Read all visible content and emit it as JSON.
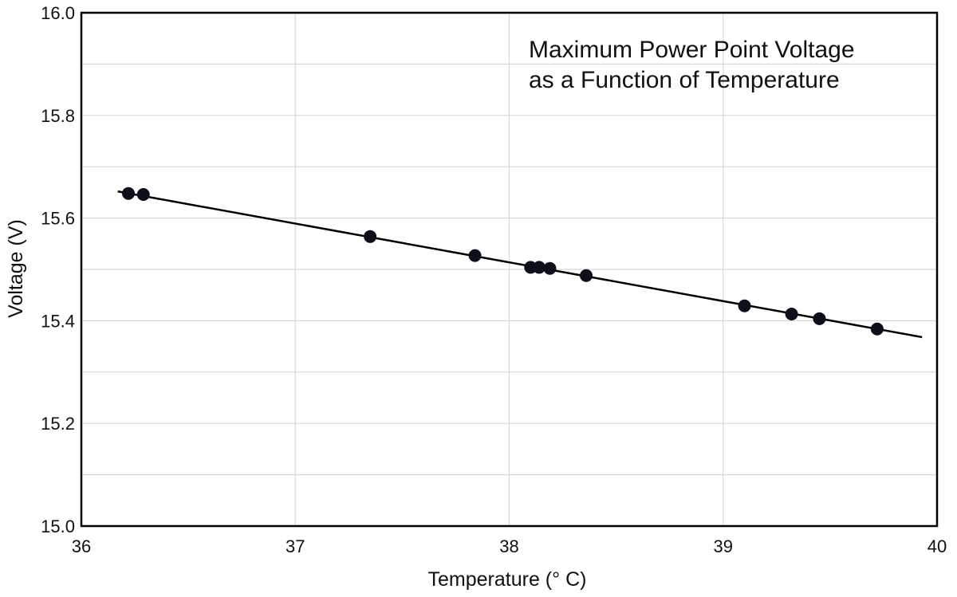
{
  "chart_data": {
    "type": "scatter",
    "title_lines": [
      "Maximum Power Point Voltage",
      "as a Function of Temperature"
    ],
    "xlabel": "Temperature (° C)",
    "ylabel": "Voltage (V)",
    "xlim": [
      36,
      40
    ],
    "ylim": [
      15.0,
      16.0
    ],
    "xticks": [
      "36",
      "37",
      "38",
      "39",
      "40"
    ],
    "yticks": [
      "15.0",
      "15.2",
      "15.4",
      "15.6",
      "15.8",
      "16.0"
    ],
    "grid": true,
    "points": [
      {
        "x": 36.22,
        "y": 15.648
      },
      {
        "x": 36.29,
        "y": 15.646
      },
      {
        "x": 37.35,
        "y": 15.564
      },
      {
        "x": 37.84,
        "y": 15.527
      },
      {
        "x": 38.1,
        "y": 15.504
      },
      {
        "x": 38.14,
        "y": 15.504
      },
      {
        "x": 38.19,
        "y": 15.502
      },
      {
        "x": 38.36,
        "y": 15.488
      },
      {
        "x": 39.1,
        "y": 15.429
      },
      {
        "x": 39.32,
        "y": 15.413
      },
      {
        "x": 39.45,
        "y": 15.404
      },
      {
        "x": 39.72,
        "y": 15.384
      }
    ],
    "fit_line": {
      "x": [
        36.17,
        39.93
      ],
      "y": [
        15.652,
        15.368
      ]
    },
    "colors": {
      "point": "#0d0f1a",
      "line": "#000000",
      "grid": "#d8d8d8",
      "frame": "#000000"
    }
  }
}
